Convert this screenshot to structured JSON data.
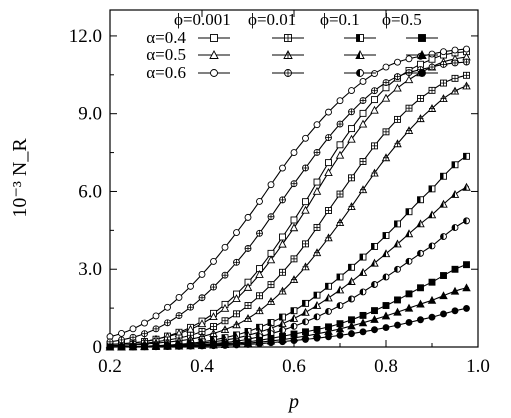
{
  "chart_data": {
    "type": "line",
    "xlabel": "p",
    "ylabel": "10⁻³ N_R",
    "xlim": [
      0.2,
      1.0
    ],
    "ylim": [
      0,
      13.0
    ],
    "xticks": [
      "0.2",
      "0.4",
      "0.6",
      "0.8",
      "1.0"
    ],
    "xtick_values": [
      0.2,
      0.4,
      0.6,
      0.8,
      1.0
    ],
    "yticks": [
      "0",
      "3.0",
      "6.0",
      "9.0",
      "12.0"
    ],
    "ytick_values": [
      0,
      3,
      6,
      9,
      12
    ],
    "grid": false,
    "legend": {
      "placement": "top-left",
      "columns": [
        "ϕ=0.001",
        "ϕ=0.01",
        "ϕ=0.1",
        "ϕ=0.5"
      ],
      "column_markers": [
        "open",
        "plus",
        "half",
        "filled"
      ],
      "rows": [
        "α=0.4",
        "α=0.5",
        "α=0.6"
      ],
      "row_shapes": [
        "square",
        "triangle",
        "circle"
      ]
    },
    "series": [
      {
        "phi": "0.001",
        "alpha": "0.4",
        "marker": "open",
        "shape": "square",
        "x": [
          0.2,
          0.3,
          0.4,
          0.5,
          0.6,
          0.7,
          0.8,
          0.9,
          0.98
        ],
        "y": [
          0.1,
          0.3,
          1.0,
          2.5,
          4.9,
          7.8,
          10.0,
          11.1,
          11.4
        ]
      },
      {
        "phi": "0.001",
        "alpha": "0.5",
        "marker": "open",
        "shape": "triangle",
        "x": [
          0.2,
          0.3,
          0.4,
          0.5,
          0.6,
          0.7,
          0.8,
          0.9,
          0.98
        ],
        "y": [
          0.1,
          0.3,
          0.9,
          2.3,
          4.6,
          7.4,
          9.6,
          10.8,
          11.2
        ]
      },
      {
        "phi": "0.001",
        "alpha": "0.6",
        "marker": "open",
        "shape": "circle",
        "x": [
          0.2,
          0.3,
          0.4,
          0.5,
          0.6,
          0.7,
          0.8,
          0.9,
          0.98
        ],
        "y": [
          0.4,
          1.2,
          2.8,
          5.0,
          7.5,
          9.5,
          10.8,
          11.3,
          11.5
        ]
      },
      {
        "phi": "0.01",
        "alpha": "0.4",
        "marker": "plus",
        "shape": "square",
        "x": [
          0.2,
          0.3,
          0.4,
          0.5,
          0.6,
          0.7,
          0.8,
          0.9,
          0.98
        ],
        "y": [
          0.05,
          0.2,
          0.6,
          1.6,
          3.4,
          5.9,
          8.3,
          9.9,
          10.5
        ]
      },
      {
        "phi": "0.01",
        "alpha": "0.5",
        "marker": "plus",
        "shape": "triangle",
        "x": [
          0.2,
          0.3,
          0.4,
          0.5,
          0.6,
          0.7,
          0.8,
          0.9,
          0.98
        ],
        "y": [
          0.05,
          0.15,
          0.4,
          1.1,
          2.6,
          4.8,
          7.3,
          9.2,
          10.1
        ]
      },
      {
        "phi": "0.01",
        "alpha": "0.6",
        "marker": "plus",
        "shape": "circle",
        "x": [
          0.2,
          0.3,
          0.4,
          0.5,
          0.6,
          0.7,
          0.8,
          0.9,
          0.98
        ],
        "y": [
          0.2,
          0.7,
          1.9,
          3.8,
          6.3,
          8.6,
          10.2,
          10.8,
          11.0
        ]
      },
      {
        "phi": "0.1",
        "alpha": "0.4",
        "marker": "half",
        "shape": "square",
        "x": [
          0.2,
          0.3,
          0.4,
          0.5,
          0.6,
          0.7,
          0.8,
          0.9,
          0.98
        ],
        "y": [
          0.0,
          0.05,
          0.2,
          0.6,
          1.4,
          2.7,
          4.3,
          6.1,
          7.4
        ]
      },
      {
        "phi": "0.1",
        "alpha": "0.5",
        "marker": "half",
        "shape": "triangle",
        "x": [
          0.2,
          0.3,
          0.4,
          0.5,
          0.6,
          0.7,
          0.8,
          0.9,
          0.98
        ],
        "y": [
          0.0,
          0.05,
          0.15,
          0.45,
          1.1,
          2.2,
          3.6,
          5.1,
          6.2
        ]
      },
      {
        "phi": "0.1",
        "alpha": "0.6",
        "marker": "half",
        "shape": "circle",
        "x": [
          0.2,
          0.3,
          0.4,
          0.5,
          0.6,
          0.7,
          0.8,
          0.9,
          0.98
        ],
        "y": [
          0.0,
          0.03,
          0.1,
          0.3,
          0.8,
          1.6,
          2.7,
          3.9,
          4.9
        ]
      },
      {
        "phi": "0.5",
        "alpha": "0.4",
        "marker": "filled",
        "shape": "square",
        "x": [
          0.2,
          0.3,
          0.4,
          0.5,
          0.6,
          0.7,
          0.8,
          0.9,
          0.98
        ],
        "y": [
          0.0,
          0.02,
          0.08,
          0.2,
          0.5,
          0.9,
          1.6,
          2.5,
          3.2
        ]
      },
      {
        "phi": "0.5",
        "alpha": "0.5",
        "marker": "filled",
        "shape": "triangle",
        "x": [
          0.2,
          0.3,
          0.4,
          0.5,
          0.6,
          0.7,
          0.8,
          0.9,
          0.98
        ],
        "y": [
          0.0,
          0.02,
          0.06,
          0.15,
          0.35,
          0.7,
          1.2,
          1.8,
          2.3
        ]
      },
      {
        "phi": "0.5",
        "alpha": "0.6",
        "marker": "filled",
        "shape": "circle",
        "x": [
          0.2,
          0.3,
          0.4,
          0.5,
          0.6,
          0.7,
          0.8,
          0.9,
          0.98
        ],
        "y": [
          0.0,
          0.01,
          0.04,
          0.1,
          0.25,
          0.45,
          0.75,
          1.15,
          1.5
        ]
      }
    ]
  }
}
